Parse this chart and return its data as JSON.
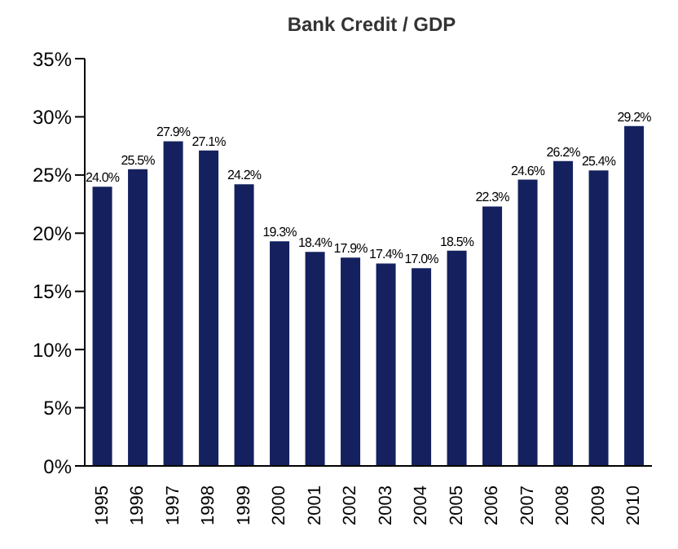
{
  "chart_data": {
    "type": "bar",
    "title": "Bank Credit / GDP",
    "categories": [
      "1995",
      "1996",
      "1997",
      "1998",
      "1999",
      "2000",
      "2001",
      "2002",
      "2003",
      "2004",
      "2005",
      "2006",
      "2007",
      "2008",
      "2009",
      "2010"
    ],
    "values": [
      24.0,
      25.5,
      27.9,
      27.1,
      24.2,
      19.3,
      18.4,
      17.9,
      17.4,
      17.0,
      18.5,
      22.3,
      24.6,
      26.2,
      25.4,
      29.2
    ],
    "value_labels": [
      "24.0%",
      "25.5%",
      "27.9%",
      "27.1%",
      "24.2%",
      "19.3%",
      "18.4%",
      "17.9%",
      "17.4%",
      "17.0%",
      "18.5%",
      "22.3%",
      "24.6%",
      "26.2%",
      "25.4%",
      "29.2%"
    ],
    "color": "#14215e",
    "ylim": [
      0,
      35
    ],
    "yticks": [
      {
        "value": 0,
        "label": "0%"
      },
      {
        "value": 5,
        "label": "5%"
      },
      {
        "value": 10,
        "label": "10%"
      },
      {
        "value": 15,
        "label": "15%"
      },
      {
        "value": 20,
        "label": "20%"
      },
      {
        "value": 25,
        "label": "25%"
      },
      {
        "value": 30,
        "label": "30%"
      },
      {
        "value": 35,
        "label": "35%"
      }
    ],
    "grid": false
  }
}
